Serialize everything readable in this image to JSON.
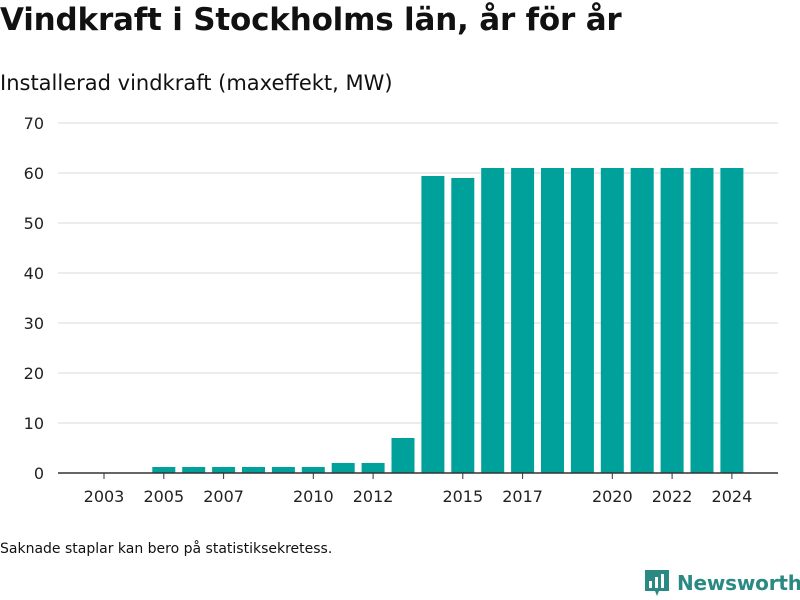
{
  "header": {
    "title": "Vindkraft i Stockholms län, år för år",
    "subtitle": "Installerad vindkraft (maxeffekt, MW)"
  },
  "footer": {
    "note": "Saknade staplar kan bero på statistiksekretess.",
    "brand_name": "Newsworthy",
    "brand_icon": "newsworthy-logo-icon"
  },
  "colors": {
    "bar": "#00a19a",
    "grid": "#d9d9d9",
    "axis": "#333333",
    "brand": "#2a8a83"
  },
  "chart_data": {
    "type": "bar",
    "categories": [
      2003,
      2004,
      2005,
      2006,
      2007,
      2008,
      2009,
      2010,
      2011,
      2012,
      2013,
      2014,
      2015,
      2016,
      2017,
      2018,
      2019,
      2020,
      2021,
      2022,
      2023,
      2024
    ],
    "values": [
      null,
      null,
      1.2,
      1.2,
      1.2,
      1.2,
      1.2,
      1.2,
      2.0,
      2.0,
      7.0,
      59.4,
      59.0,
      61.0,
      61.0,
      61.0,
      61.0,
      61.0,
      61.0,
      61.0,
      61.0,
      61.0
    ],
    "x_tick_labels": [
      2003,
      2005,
      2007,
      2010,
      2012,
      2015,
      2017,
      2020,
      2022,
      2024
    ],
    "y_ticks": [
      0,
      10,
      20,
      30,
      40,
      50,
      60,
      70
    ],
    "ylim": [
      0,
      70
    ],
    "grid": true,
    "legend": "none"
  }
}
